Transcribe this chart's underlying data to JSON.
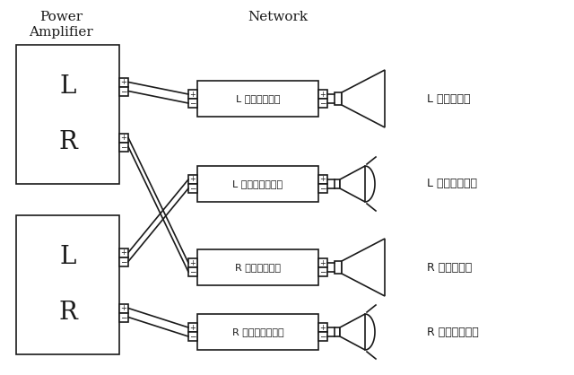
{
  "bg_color": "#ffffff",
  "line_color": "#1a1a1a",
  "title_pa": "Power\nAmplifier",
  "title_nw": "Network",
  "amp_labels": [
    "L",
    "R",
    "L",
    "R"
  ],
  "nw_labels": [
    "L ウーファー用",
    "L トゥイーター用",
    "R ウーファー用",
    "R トゥイーター用"
  ],
  "spk_labels": [
    "L ウーファー",
    "L トゥイーター",
    "R ウーファー",
    "R トゥイーター"
  ],
  "ts": 0.018
}
